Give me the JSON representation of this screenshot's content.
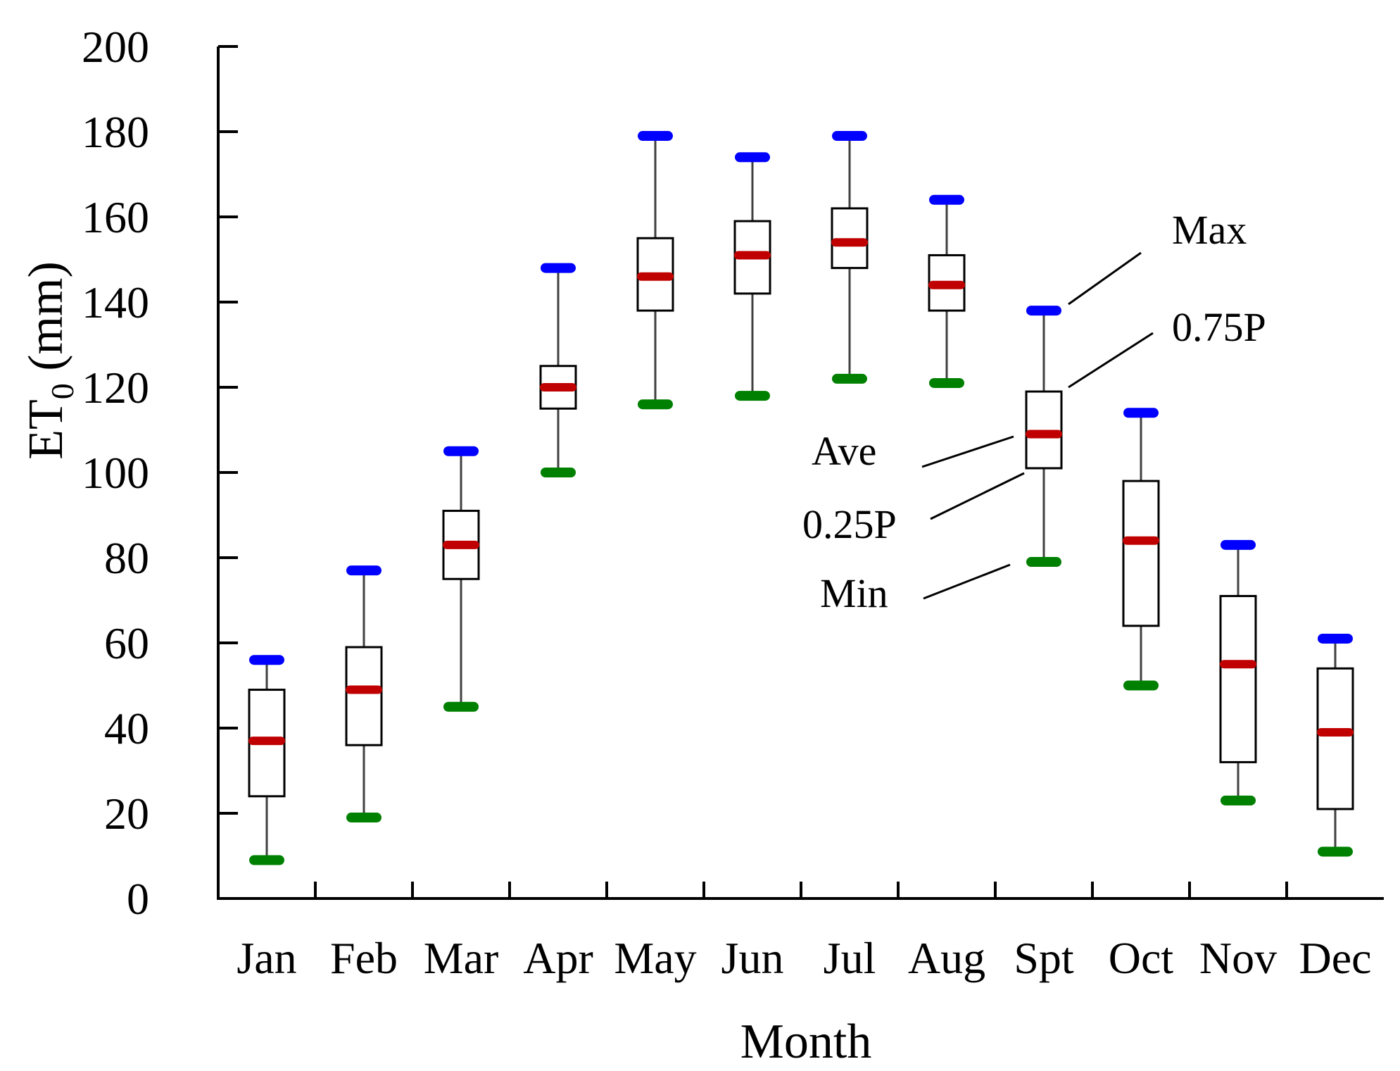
{
  "chart_data": {
    "type": "box",
    "title": "",
    "xlabel": "Month",
    "ylabel_main": "ET",
    "ylabel_sub": "0",
    "ylabel_unit": " (mm)",
    "ylim": [
      0,
      200
    ],
    "yticks": [
      0,
      20,
      40,
      60,
      80,
      100,
      120,
      140,
      160,
      180,
      200
    ],
    "categories": [
      "Jan",
      "Feb",
      "Mar",
      "Apr",
      "May",
      "Jun",
      "Jul",
      "Aug",
      "Spt",
      "Oct",
      "Nov",
      "Dec"
    ],
    "series": [
      {
        "name": "Max",
        "values": [
          56,
          77,
          105,
          148,
          179,
          174,
          179,
          164,
          138,
          114,
          83,
          61
        ]
      },
      {
        "name": "0.75P",
        "values": [
          49,
          59,
          91,
          125,
          155,
          159,
          162,
          151,
          119,
          98,
          71,
          54
        ]
      },
      {
        "name": "Ave",
        "values": [
          37,
          49,
          83,
          120,
          146,
          151,
          154,
          144,
          109,
          84,
          55,
          39
        ]
      },
      {
        "name": "0.25P",
        "values": [
          24,
          36,
          75,
          115,
          138,
          142,
          148,
          138,
          101,
          64,
          32,
          21
        ]
      },
      {
        "name": "Min",
        "values": [
          9,
          19,
          45,
          100,
          116,
          118,
          122,
          121,
          79,
          50,
          23,
          11
        ]
      }
    ],
    "legend": {
      "max": "Max",
      "p75": "0.75P",
      "ave": "Ave",
      "p25": "0.25P",
      "min": "Min"
    },
    "colors": {
      "max": "#0000ff",
      "ave": "#c00000",
      "min": "#008000",
      "whisker": "#404040",
      "box": "#000000"
    }
  }
}
